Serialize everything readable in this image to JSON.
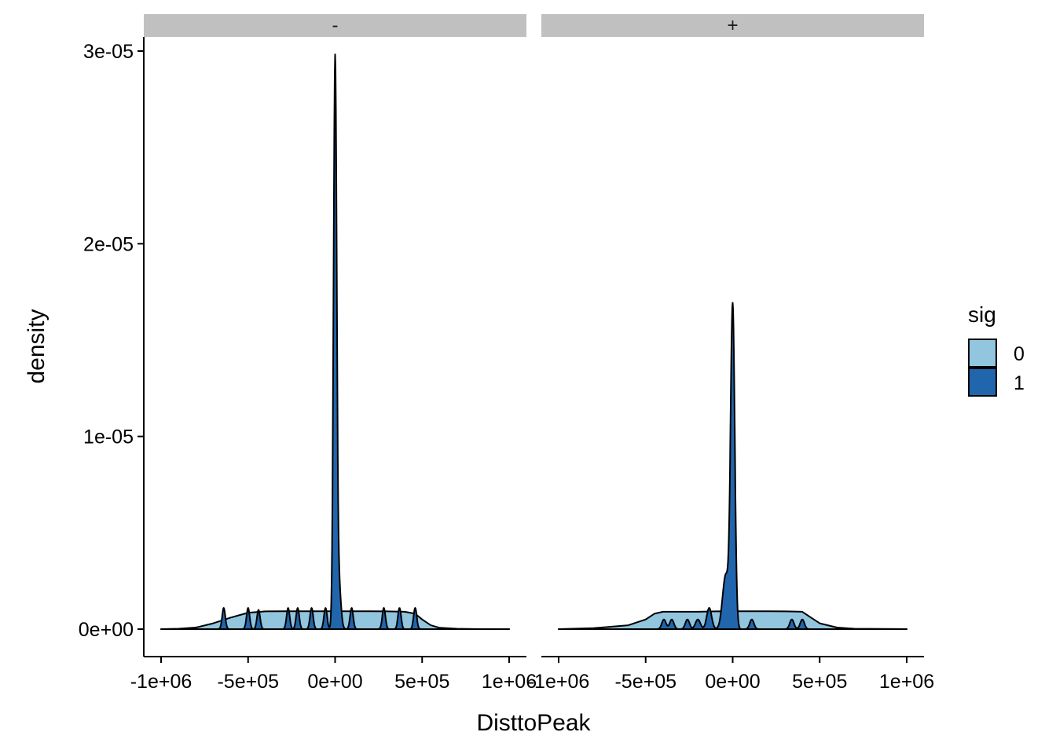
{
  "chart_data": {
    "type": "area",
    "subtype": "density",
    "xlabel": "DisttoPeak",
    "ylabel": "density",
    "xlim": [
      -1000000,
      1000000
    ],
    "ylim": [
      0,
      3e-05
    ],
    "x_ticks": [
      -1000000,
      -500000,
      0,
      500000,
      1000000
    ],
    "x_tick_labels": [
      "-1e+06",
      "-5e+05",
      "0e+00",
      "5e+05",
      "1e+06"
    ],
    "y_ticks": [
      0,
      1e-05,
      2e-05,
      3e-05
    ],
    "y_tick_labels": [
      "0e+00",
      "1e-05",
      "2e-05",
      "3e-05"
    ],
    "grid": false,
    "legend": {
      "title": "sig",
      "position": "right",
      "entries": [
        {
          "label": "0",
          "color": "#92C5DE"
        },
        {
          "label": "1",
          "color": "#2166AC"
        }
      ]
    },
    "panels": [
      {
        "strip": "-",
        "series": [
          {
            "name": "0",
            "color": "#92C5DE",
            "points": [
              [
                -1000000,
                0
              ],
              [
                -900000,
                2e-08
              ],
              [
                -800000,
                8e-08
              ],
              [
                -700000,
                3e-07
              ],
              [
                -600000,
                6e-07
              ],
              [
                -500000,
                8.5e-07
              ],
              [
                -400000,
                9.2e-07
              ],
              [
                -300000,
                9.3e-07
              ],
              [
                -200000,
                9.3e-07
              ],
              [
                -100000,
                9.3e-07
              ],
              [
                0,
                9.3e-07
              ],
              [
                100000,
                9.3e-07
              ],
              [
                200000,
                9.3e-07
              ],
              [
                300000,
                9.2e-07
              ],
              [
                400000,
                9e-07
              ],
              [
                460000,
                8e-07
              ],
              [
                500000,
                5e-07
              ],
              [
                550000,
                2e-07
              ],
              [
                600000,
                7e-08
              ],
              [
                700000,
                2e-08
              ],
              [
                800000,
                5e-09
              ],
              [
                1000000,
                0
              ]
            ]
          },
          {
            "name": "1",
            "color": "#2166AC",
            "baseline": 0,
            "peaks": [
              {
                "x": -640000,
                "height": 1.1e-06,
                "width": 9000
              },
              {
                "x": -500000,
                "height": 1.1e-06,
                "width": 9000
              },
              {
                "x": -440000,
                "height": 1e-06,
                "width": 9000
              },
              {
                "x": -270000,
                "height": 1.1e-06,
                "width": 9000
              },
              {
                "x": -215000,
                "height": 1.1e-06,
                "width": 9000
              },
              {
                "x": -135000,
                "height": 1.1e-06,
                "width": 9000
              },
              {
                "x": -55000,
                "height": 1.1e-06,
                "width": 9000
              },
              {
                "x": 0,
                "height": 2.92e-05,
                "width": 9000
              },
              {
                "x": 20000,
                "height": 2.5e-06,
                "width": 12000
              },
              {
                "x": 95000,
                "height": 1.1e-06,
                "width": 9000
              },
              {
                "x": 280000,
                "height": 1.1e-06,
                "width": 9000
              },
              {
                "x": 370000,
                "height": 1.1e-06,
                "width": 9000
              },
              {
                "x": 460000,
                "height": 1.1e-06,
                "width": 9000
              }
            ]
          }
        ]
      },
      {
        "strip": "+",
        "series": [
          {
            "name": "0",
            "color": "#92C5DE",
            "points": [
              [
                -1000000,
                0
              ],
              [
                -800000,
                5e-08
              ],
              [
                -600000,
                2e-07
              ],
              [
                -500000,
                5e-07
              ],
              [
                -450000,
                8e-07
              ],
              [
                -400000,
                9e-07
              ],
              [
                -300000,
                9e-07
              ],
              [
                -200000,
                9e-07
              ],
              [
                -100000,
                9.2e-07
              ],
              [
                0,
                9.3e-07
              ],
              [
                100000,
                9.3e-07
              ],
              [
                200000,
                9.3e-07
              ],
              [
                300000,
                9.2e-07
              ],
              [
                400000,
                9e-07
              ],
              [
                450000,
                6e-07
              ],
              [
                500000,
                3e-07
              ],
              [
                600000,
                8e-08
              ],
              [
                700000,
                2e-08
              ],
              [
                1000000,
                0
              ]
            ]
          },
          {
            "name": "1",
            "color": "#2166AC",
            "baseline": 0,
            "peaks": [
              {
                "x": -395000,
                "height": 5e-07,
                "width": 12000
              },
              {
                "x": -350000,
                "height": 5e-07,
                "width": 12000
              },
              {
                "x": -260000,
                "height": 5e-07,
                "width": 12000
              },
              {
                "x": -200000,
                "height": 5e-07,
                "width": 14000
              },
              {
                "x": -135000,
                "height": 1.1e-06,
                "width": 14000
              },
              {
                "x": -40000,
                "height": 2.8e-06,
                "width": 18000
              },
              {
                "x": 0,
                "height": 1.67e-05,
                "width": 12000
              },
              {
                "x": 110000,
                "height": 5e-07,
                "width": 12000
              },
              {
                "x": 340000,
                "height": 5e-07,
                "width": 12000
              },
              {
                "x": 400000,
                "height": 5e-07,
                "width": 12000
              }
            ]
          }
        ]
      }
    ]
  }
}
